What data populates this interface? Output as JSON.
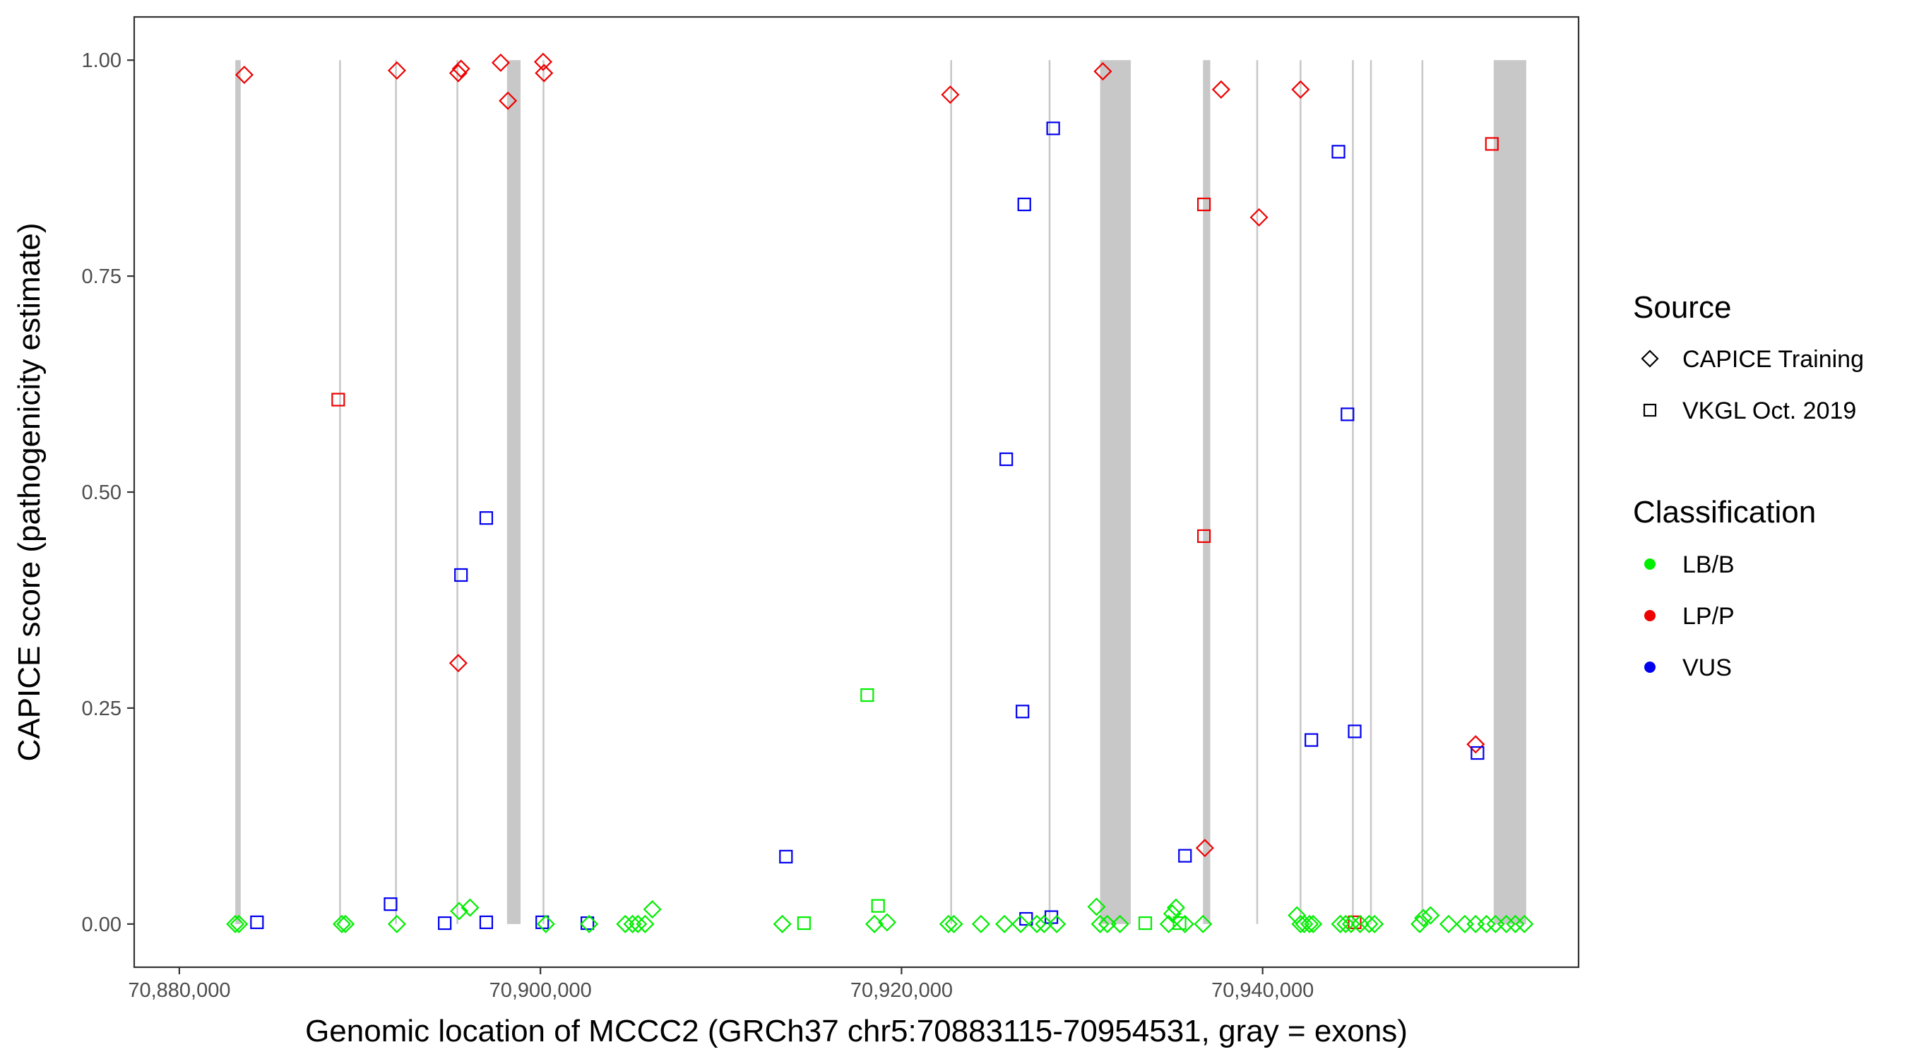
{
  "chart_data": {
    "type": "scatter",
    "xlabel": "Genomic location of MCCC2 (GRCh37 chr5:70883115-70954531, gray = exons)",
    "ylabel": "CAPICE score (pathogenicity estimate)",
    "xlim": [
      70877500,
      70957500
    ],
    "ylim": [
      -0.05,
      1.05
    ],
    "x_ticks": [
      70880000,
      70900000,
      70920000,
      70940000
    ],
    "x_tick_labels": [
      "70,880,000",
      "70,900,000",
      "70,920,000",
      "70,940,000"
    ],
    "y_ticks": [
      0,
      0.25,
      0.5,
      0.75,
      1
    ],
    "y_tick_labels": [
      "0.00",
      "0.25",
      "0.50",
      "0.75",
      "1.00"
    ],
    "colors": {
      "LB/B": "#00ee00",
      "LP/P": "#ee0000",
      "VUS": "#0000ee",
      "exon": "#c8c8c8",
      "panel_border": "#333333"
    },
    "exons": [
      [
        70883100,
        70883400
      ],
      [
        70888850,
        70888950
      ],
      [
        70891950,
        70892050
      ],
      [
        70895350,
        70895450
      ],
      [
        70898150,
        70898900
      ],
      [
        70900120,
        70900220
      ],
      [
        70922700,
        70922800
      ],
      [
        70928150,
        70928250
      ],
      [
        70931000,
        70932700
      ],
      [
        70936700,
        70937100
      ],
      [
        70939650,
        70939750
      ],
      [
        70942050,
        70942150
      ],
      [
        70944950,
        70945050
      ],
      [
        70945950,
        70946050
      ],
      [
        70948800,
        70948900
      ],
      [
        70952800,
        70954600
      ]
    ],
    "legend": {
      "source": {
        "title": "Source",
        "items": [
          {
            "label": "CAPICE Training",
            "shape": "diamond"
          },
          {
            "label": "VKGL Oct. 2019",
            "shape": "square"
          }
        ]
      },
      "classification": {
        "title": "Classification",
        "items": [
          {
            "label": "LB/B",
            "color": "#00ee00"
          },
          {
            "label": "LP/P",
            "color": "#ee0000"
          },
          {
            "label": "VUS",
            "color": "#0000ee"
          }
        ]
      }
    },
    "series": [
      {
        "name": "CAPICE Training - LP/P",
        "shape": "diamond",
        "class": "LP/P",
        "points": [
          [
            70883600,
            0.983
          ],
          [
            70892050,
            0.988
          ],
          [
            70895450,
            0.985
          ],
          [
            70895600,
            0.99
          ],
          [
            70897800,
            0.997
          ],
          [
            70898200,
            0.953
          ],
          [
            70900150,
            0.998
          ],
          [
            70900200,
            0.985
          ],
          [
            70895450,
            0.302
          ],
          [
            70922700,
            0.96
          ],
          [
            70931150,
            0.987
          ],
          [
            70937700,
            0.966
          ],
          [
            70939800,
            0.818
          ],
          [
            70942100,
            0.966
          ],
          [
            70936800,
            0.088
          ],
          [
            70951800,
            0.208
          ]
        ]
      },
      {
        "name": "VKGL Oct. 2019 - LP/P",
        "shape": "square",
        "class": "LP/P",
        "points": [
          [
            70888800,
            0.607
          ],
          [
            70936750,
            0.833
          ],
          [
            70936750,
            0.449
          ],
          [
            70952700,
            0.903
          ],
          [
            70945100,
            0.002
          ]
        ]
      },
      {
        "name": "VKGL Oct. 2019 - VUS",
        "shape": "square",
        "class": "VUS",
        "points": [
          [
            70884300,
            0.002
          ],
          [
            70891700,
            0.023
          ],
          [
            70894700,
            0.001
          ],
          [
            70895600,
            0.404
          ],
          [
            70897000,
            0.47
          ],
          [
            70897000,
            0.002
          ],
          [
            70900100,
            0.002
          ],
          [
            70902600,
            0.001
          ],
          [
            70913600,
            0.078
          ],
          [
            70925800,
            0.538
          ],
          [
            70926800,
            0.833
          ],
          [
            70926700,
            0.246
          ],
          [
            70926900,
            0.006
          ],
          [
            70928400,
            0.921
          ],
          [
            70928300,
            0.008
          ],
          [
            70935700,
            0.079
          ],
          [
            70944200,
            0.894
          ],
          [
            70944700,
            0.59
          ],
          [
            70942700,
            0.213
          ],
          [
            70945100,
            0.223
          ],
          [
            70951900,
            0.198
          ]
        ]
      },
      {
        "name": "VKGL Oct. 2019 - LB/B",
        "shape": "square",
        "class": "LB/B",
        "points": [
          [
            70918100,
            0.265
          ],
          [
            70918700,
            0.021
          ],
          [
            70914600,
            0.001
          ],
          [
            70933500,
            0.001
          ],
          [
            70935400,
            0.001
          ]
        ]
      },
      {
        "name": "CAPICE Training - LB/B",
        "shape": "diamond",
        "class": "LB/B",
        "points": [
          [
            70883100,
            0.0
          ],
          [
            70883300,
            0.0
          ],
          [
            70889000,
            0.0
          ],
          [
            70889200,
            0.0
          ],
          [
            70892050,
            0.0
          ],
          [
            70895500,
            0.015
          ],
          [
            70896100,
            0.019
          ],
          [
            70900300,
            0.0
          ],
          [
            70902700,
            0.0
          ],
          [
            70904700,
            0.0
          ],
          [
            70905100,
            0.0
          ],
          [
            70905400,
            0.0
          ],
          [
            70905800,
            0.0
          ],
          [
            70906200,
            0.017
          ],
          [
            70913400,
            0.0
          ],
          [
            70918500,
            0.0
          ],
          [
            70919200,
            0.002
          ],
          [
            70922600,
            0.0
          ],
          [
            70922900,
            0.0
          ],
          [
            70924400,
            0.0
          ],
          [
            70925700,
            0.0
          ],
          [
            70926600,
            0.0
          ],
          [
            70927500,
            0.0
          ],
          [
            70927900,
            0.0
          ],
          [
            70928600,
            0.0
          ],
          [
            70930800,
            0.02
          ],
          [
            70931000,
            0.0
          ],
          [
            70931400,
            0.0
          ],
          [
            70932100,
            0.0
          ],
          [
            70934800,
            0.0
          ],
          [
            70935000,
            0.012
          ],
          [
            70935200,
            0.019
          ],
          [
            70935700,
            0.0
          ],
          [
            70936700,
            0.0
          ],
          [
            70941900,
            0.01
          ],
          [
            70942100,
            0.0
          ],
          [
            70942300,
            0.0
          ],
          [
            70942600,
            0.0
          ],
          [
            70942800,
            0.0
          ],
          [
            70944300,
            0.0
          ],
          [
            70944600,
            0.0
          ],
          [
            70944900,
            0.0
          ],
          [
            70945400,
            0.0
          ],
          [
            70945900,
            0.0
          ],
          [
            70946200,
            0.0
          ],
          [
            70948700,
            0.0
          ],
          [
            70948900,
            0.007
          ],
          [
            70949300,
            0.01
          ],
          [
            70950300,
            0.0
          ],
          [
            70951200,
            0.0
          ],
          [
            70951800,
            0.0
          ],
          [
            70952400,
            0.0
          ],
          [
            70952900,
            0.0
          ],
          [
            70953500,
            0.0
          ],
          [
            70954000,
            0.0
          ],
          [
            70954500,
            0.0
          ]
        ]
      }
    ]
  }
}
